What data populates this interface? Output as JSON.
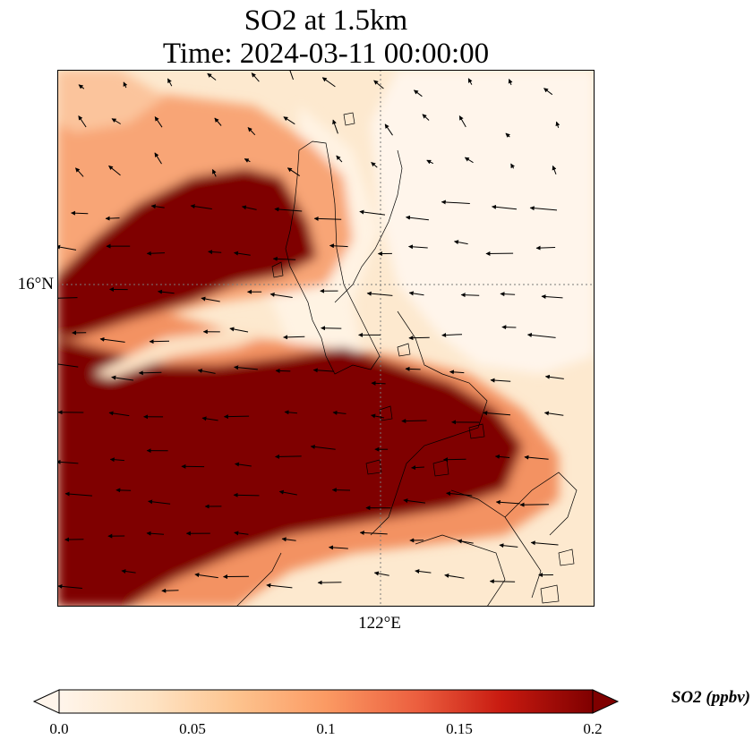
{
  "title": {
    "line1": "SO2 at 1.5km",
    "line2": "Time: 2024-03-11 00:00:00"
  },
  "map": {
    "lat_label": "16°N",
    "lon_label": "122°E",
    "colors": {
      "background": "#fde9cf",
      "low": "#fff5eb",
      "mid": "#f4845a",
      "high": "#7f0000",
      "coast": "#000000",
      "gridline": "#7a7a7a"
    }
  },
  "colorbar": {
    "label": "SO2 (ppbv)",
    "ticks": [
      "0.0",
      "0.05",
      "0.1",
      "0.15",
      "0.2"
    ],
    "tick_values": [
      0.0,
      0.05,
      0.1,
      0.15,
      0.2
    ],
    "vmin": 0.0,
    "vmax": 0.2,
    "colormap": [
      "#fff5eb",
      "#fdd9a8",
      "#fcb27e",
      "#f4845a",
      "#e34a33",
      "#c20f0b",
      "#7f0000"
    ]
  }
}
